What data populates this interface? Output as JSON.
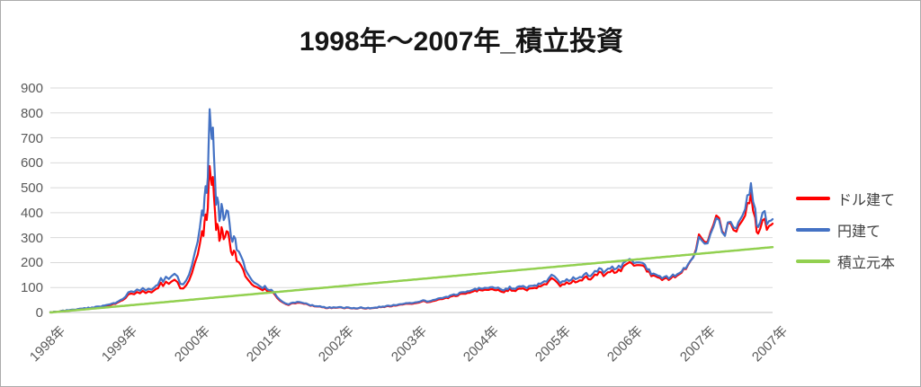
{
  "chart_data": {
    "type": "line",
    "title": "1998年～2007年_積立投資",
    "xlabel": "",
    "ylabel": "",
    "ylim": [
      0,
      900
    ],
    "y_ticks": [
      "0",
      "100",
      "200",
      "300",
      "400",
      "500",
      "600",
      "700",
      "800",
      "900"
    ],
    "x_labels": [
      "1998年",
      "1999年",
      "2000年",
      "2001年",
      "2002年",
      "2003年",
      "2004年",
      "2005年",
      "2006年",
      "2007年",
      "2007年"
    ],
    "x_range": [
      0,
      10
    ],
    "grid": "horizontal",
    "legend_position": "right",
    "gridline_color": "#d9d9d9",
    "axis_line_color": "#bfbfbf",
    "x": [
      0.0,
      0.1,
      0.2,
      0.3,
      0.4,
      0.5,
      0.6,
      0.7,
      0.8,
      0.9,
      1.0,
      1.04,
      1.08,
      1.12,
      1.16,
      1.2,
      1.24,
      1.28,
      1.32,
      1.36,
      1.4,
      1.44,
      1.49,
      1.53,
      1.56,
      1.6,
      1.64,
      1.68,
      1.72,
      1.76,
      1.8,
      1.84,
      1.88,
      1.92,
      1.96,
      2.0,
      2.04,
      2.07,
      2.1,
      2.12,
      2.135,
      2.15,
      2.165,
      2.18,
      2.19,
      2.205,
      2.22,
      2.235,
      2.25,
      2.265,
      2.28,
      2.295,
      2.31,
      2.325,
      2.34,
      2.355,
      2.37,
      2.385,
      2.4,
      2.42,
      2.44,
      2.46,
      2.48,
      2.5,
      2.52,
      2.54,
      2.56,
      2.58,
      2.61,
      2.64,
      2.67,
      2.7,
      2.73,
      2.76,
      2.79,
      2.82,
      2.86,
      2.9,
      2.94,
      2.97,
      3.0,
      3.03,
      3.06,
      3.1,
      3.14,
      3.18,
      3.22,
      3.26,
      3.3,
      3.36,
      3.42,
      3.48,
      3.54,
      3.6,
      3.68,
      3.76,
      3.84,
      3.92,
      4.0,
      4.1,
      4.2,
      4.3,
      4.4,
      4.5,
      4.6,
      4.7,
      4.8,
      4.9,
      5.0,
      5.08,
      5.16,
      5.24,
      5.32,
      5.4,
      5.48,
      5.56,
      5.64,
      5.72,
      5.8,
      5.88,
      5.96,
      6.04,
      6.12,
      6.2,
      6.28,
      6.36,
      6.44,
      6.52,
      6.6,
      6.68,
      6.76,
      6.84,
      6.9,
      6.94,
      6.98,
      7.02,
      7.06,
      7.12,
      7.18,
      7.24,
      7.3,
      7.36,
      7.42,
      7.48,
      7.54,
      7.6,
      7.66,
      7.72,
      7.78,
      7.84,
      7.9,
      7.96,
      8.02,
      8.08,
      8.14,
      8.2,
      8.26,
      8.32,
      8.38,
      8.44,
      8.5,
      8.56,
      8.62,
      8.68,
      8.74,
      8.8,
      8.86,
      8.9,
      8.94,
      8.98,
      9.02,
      9.06,
      9.1,
      9.14,
      9.18,
      9.22,
      9.26,
      9.3,
      9.34,
      9.38,
      9.42,
      9.46,
      9.5,
      9.55,
      9.58,
      9.62,
      9.65,
      9.68,
      9.7,
      9.73,
      9.76,
      9.78,
      9.8,
      9.83,
      9.86,
      9.89,
      9.92,
      9.95,
      9.98,
      10.0
    ],
    "series": [
      {
        "name": "ドル建て",
        "color": "#ff0000",
        "width": 2.2,
        "jitter": 0.045,
        "values": [
          0,
          3,
          6,
          10,
          13,
          15,
          18,
          21,
          28,
          36,
          48,
          58,
          70,
          79,
          73,
          82,
          76,
          84,
          79,
          87,
          83,
          91,
          97,
          118,
          110,
          126,
          119,
          129,
          132,
          120,
          98,
          96,
          109,
          128,
          155,
          192,
          238,
          276,
          336,
          310,
          368,
          410,
          385,
          438,
          528,
          600,
          562,
          518,
          538,
          478,
          395,
          325,
          358,
          336,
          278,
          302,
          342,
          318,
          284,
          308,
          338,
          312,
          282,
          254,
          234,
          258,
          238,
          215,
          200,
          182,
          166,
          150,
          135,
          122,
          111,
          107,
          98,
          94,
          88,
          95,
          90,
          82,
          88,
          75,
          60,
          47,
          40,
          34,
          31,
          36,
          39,
          37,
          33,
          29,
          25,
          21,
          19,
          18,
          20,
          18,
          16,
          18,
          17,
          19,
          22,
          25,
          29,
          33,
          36,
          40,
          44,
          41,
          46,
          52,
          58,
          63,
          69,
          74,
          80,
          86,
          90,
          91,
          96,
          89,
          84,
          92,
          87,
          95,
          90,
          98,
          102,
          109,
          126,
          137,
          128,
          117,
          106,
          112,
          120,
          125,
          119,
          131,
          139,
          133,
          146,
          158,
          150,
          160,
          168,
          159,
          172,
          183,
          194,
          188,
          192,
          186,
          167,
          152,
          141,
          133,
          139,
          132,
          140,
          151,
          164,
          181,
          201,
          228,
          255,
          310,
          294,
          278,
          296,
          319,
          350,
          382,
          364,
          335,
          320,
          344,
          352,
          329,
          321,
          346,
          376,
          402,
          428,
          458,
          462,
          418,
          370,
          318,
          312,
          348,
          372,
          360,
          336,
          352,
          362,
          356
        ]
      },
      {
        "name": "円建て",
        "color": "#4472c4",
        "width": 2.2,
        "jitter": 0.045,
        "values": [
          0,
          3,
          7,
          11,
          14,
          17,
          20,
          24,
          31,
          39,
          52,
          64,
          78,
          88,
          82,
          92,
          86,
          95,
          90,
          98,
          94,
          103,
          111,
          136,
          128,
          146,
          139,
          151,
          156,
          143,
          116,
          113,
          129,
          152,
          186,
          232,
          292,
          342,
          422,
          392,
          468,
          528,
          498,
          568,
          690,
          830,
          772,
          705,
          735,
          645,
          525,
          425,
          465,
          435,
          355,
          385,
          435,
          405,
          358,
          388,
          425,
          392,
          352,
          315,
          288,
          318,
          292,
          262,
          242,
          218,
          198,
          178,
          158,
          142,
          128,
          122,
          110,
          104,
          96,
          104,
          98,
          88,
          94,
          80,
          64,
          50,
          42,
          36,
          33,
          38,
          42,
          39,
          35,
          30,
          26,
          22,
          20,
          19,
          21,
          19,
          17,
          19,
          18,
          20,
          23,
          27,
          31,
          35,
          39,
          43,
          47,
          44,
          50,
          56,
          62,
          68,
          74,
          80,
          87,
          93,
          97,
          99,
          105,
          98,
          92,
          100,
          96,
          104,
          100,
          108,
          112,
          120,
          138,
          150,
          142,
          130,
          118,
          124,
          132,
          138,
          132,
          144,
          152,
          147,
          160,
          172,
          164,
          174,
          182,
          174,
          186,
          196,
          206,
          199,
          203,
          196,
          176,
          160,
          148,
          140,
          146,
          138,
          146,
          156,
          168,
          184,
          202,
          226,
          250,
          300,
          286,
          272,
          290,
          312,
          342,
          372,
          356,
          330,
          318,
          346,
          358,
          340,
          334,
          362,
          396,
          428,
          458,
          495,
          500,
          455,
          405,
          345,
          338,
          375,
          402,
          390,
          358,
          372,
          380,
          374
        ]
      },
      {
        "name": "積立元本",
        "color": "#92d050",
        "width": 2.5,
        "jitter": 0,
        "x": [
          0,
          10
        ],
        "values": [
          0,
          262
        ]
      }
    ]
  }
}
